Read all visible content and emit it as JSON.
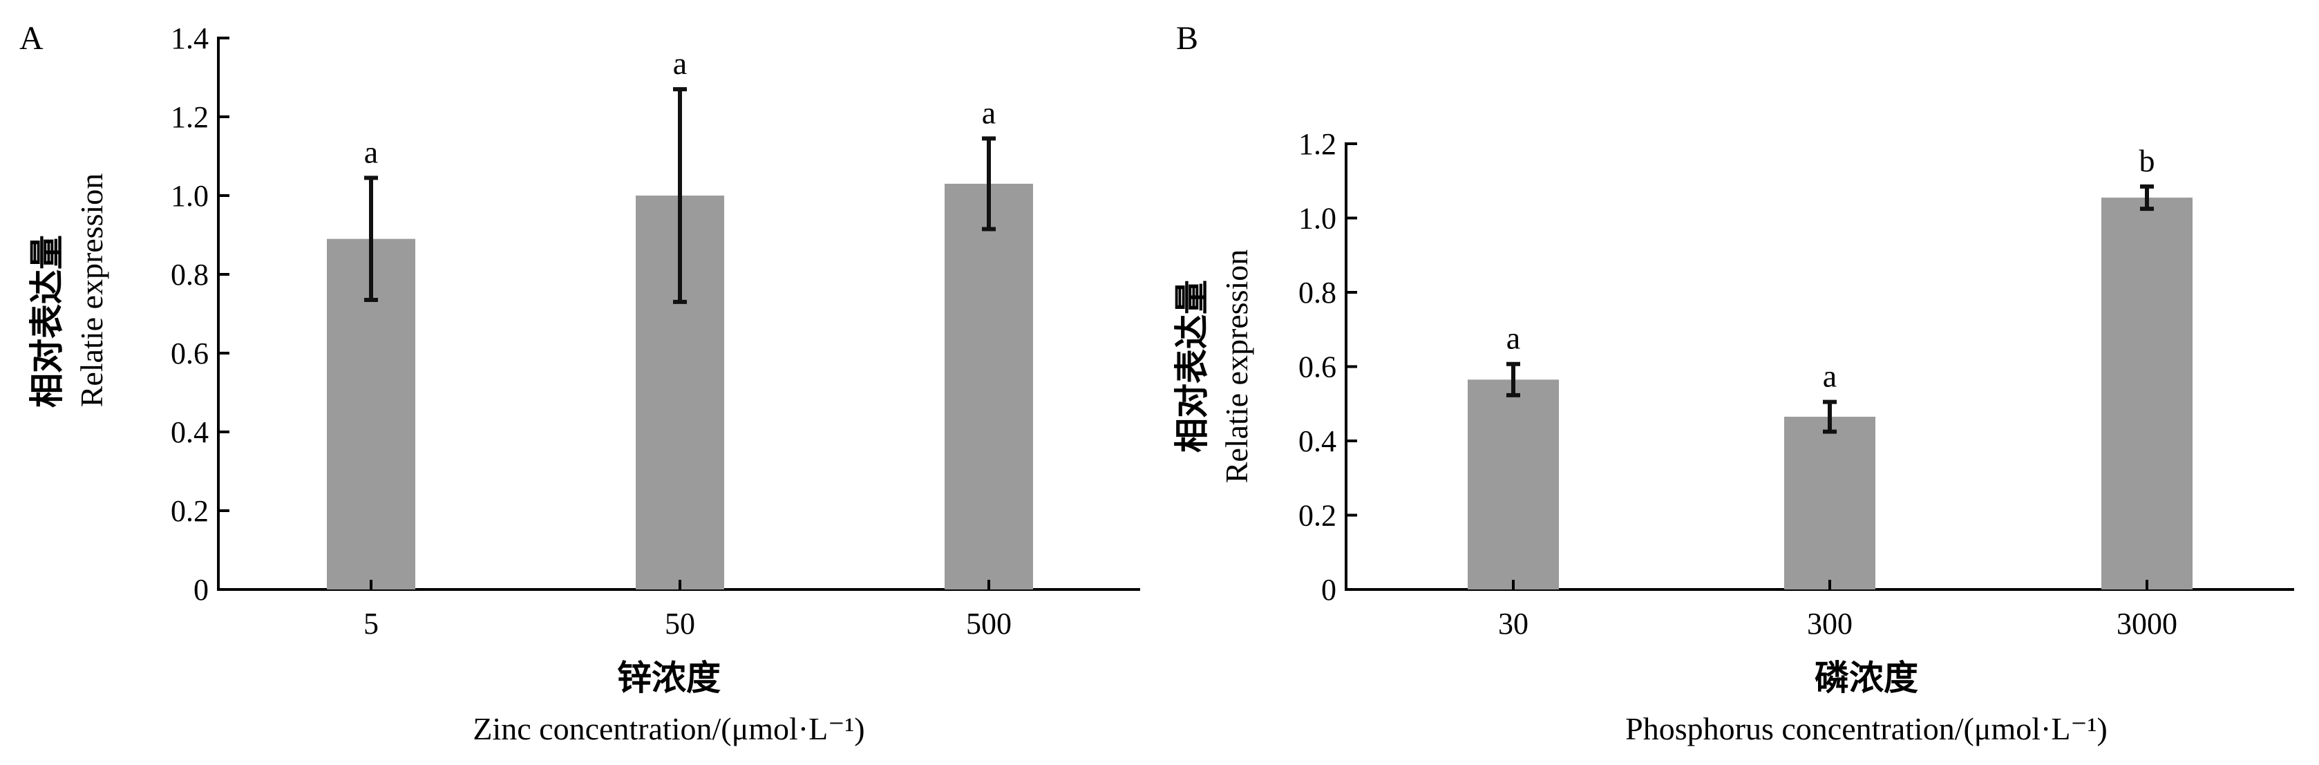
{
  "chart_data": [
    {
      "type": "bar",
      "panel_label": "A",
      "categories": [
        "5",
        "50",
        "500"
      ],
      "series": [
        {
          "values": [
            0.89,
            1.0,
            1.03
          ],
          "errors": [
            0.155,
            0.27,
            0.115
          ]
        }
      ],
      "significance": [
        "a",
        "a",
        "a"
      ],
      "ylabel_zh": "相对表达量",
      "ylabel_en": "Relatie expression",
      "xlabel_zh": "锌浓度",
      "xlabel_en": "Zinc concentration/(μmol·L⁻¹)",
      "ylim": [
        0,
        1.4
      ],
      "yticks": [
        "0",
        "0.2",
        "0.4",
        "0.6",
        "0.8",
        "1.0",
        "1.2",
        "1.4"
      ],
      "bar_color": "#9b9b9b",
      "grid": false
    },
    {
      "type": "bar",
      "panel_label": "B",
      "categories": [
        "30",
        "300",
        "3000"
      ],
      "series": [
        {
          "values": [
            0.565,
            0.465,
            1.055
          ],
          "errors": [
            0.042,
            0.04,
            0.03
          ]
        }
      ],
      "significance": [
        "a",
        "a",
        "b"
      ],
      "ylabel_zh": "相对表达量",
      "ylabel_en": "Relatie expression",
      "xlabel_zh": "磷浓度",
      "xlabel_en": "Phosphorus concentration/(μmol·L⁻¹)",
      "ylim": [
        0,
        1.2
      ],
      "yticks": [
        "0",
        "0.2",
        "0.4",
        "0.6",
        "0.8",
        "1.0",
        "1.2"
      ],
      "bar_color": "#9b9b9b",
      "grid": false
    }
  ]
}
